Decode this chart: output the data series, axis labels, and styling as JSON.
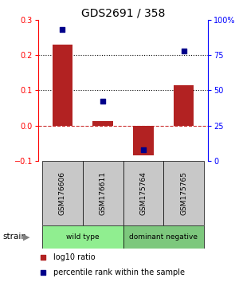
{
  "title": "GDS2691 / 358",
  "samples": [
    "GSM176606",
    "GSM176611",
    "GSM175764",
    "GSM175765"
  ],
  "log10_ratio": [
    0.23,
    0.013,
    -0.085,
    0.115
  ],
  "percentile_rank": [
    93,
    42,
    8,
    78
  ],
  "groups": [
    {
      "label": "wild type",
      "samples": [
        0,
        1
      ],
      "color": "#90ee90"
    },
    {
      "label": "dominant negative",
      "samples": [
        2,
        3
      ],
      "color": "#7dc87d"
    }
  ],
  "group_label": "strain",
  "bar_color": "#b22222",
  "dot_color": "#00008b",
  "bar_width": 0.5,
  "ylim_left": [
    -0.1,
    0.3
  ],
  "ylim_right": [
    0,
    100
  ],
  "yticks_left": [
    -0.1,
    0,
    0.1,
    0.2,
    0.3
  ],
  "yticks_right": [
    0,
    25,
    50,
    75,
    100
  ],
  "hlines_dotted": [
    0.1,
    0.2
  ],
  "hline_dashed": 0.0,
  "background_color": "#ffffff",
  "label_area_color": "#c8c8c8",
  "title_fontsize": 10,
  "legend_red_label": "log10 ratio",
  "legend_blue_label": "percentile rank within the sample"
}
